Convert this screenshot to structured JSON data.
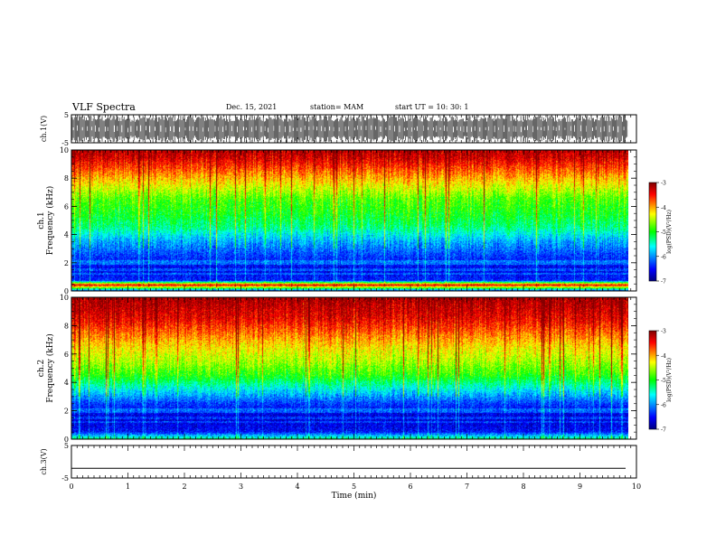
{
  "header": {
    "title": "VLF Spectra",
    "date": "Dec. 15, 2021",
    "station": "station= MAM",
    "start": "start UT =   10: 30: 1"
  },
  "chart_data": {
    "type": "heatmap",
    "x": {
      "label": "Time (min)",
      "range": [
        0,
        10
      ],
      "ticks": [
        0,
        1,
        2,
        3,
        4,
        5,
        6,
        7,
        8,
        9,
        10
      ],
      "tick_labels": [
        "0",
        "1",
        "2",
        "3",
        "4",
        "5",
        "6",
        "7",
        "8",
        "9",
        "10"
      ],
      "data_end": 9.85
    },
    "panels": [
      {
        "id": "ch1-waveform",
        "type": "line",
        "ylabel": "ch.1(V)",
        "ylim": [
          -5,
          5
        ],
        "yticks": [
          5,
          -5
        ],
        "ytick_labels": [
          "5",
          "-5"
        ],
        "description_values": {
          "amplitude_max": 5,
          "amplitude_min": -5,
          "signal": "dense impulsive bursts"
        }
      },
      {
        "id": "ch1-spectrogram",
        "type": "heatmap",
        "ylabel_line1": "ch.1",
        "ylabel_line2": "Frequency (kHz)",
        "ylim": [
          0,
          10
        ],
        "yticks": [
          0,
          2,
          4,
          6,
          8,
          10
        ],
        "ytick_labels": [
          "0",
          "2",
          "4",
          "6",
          "8",
          "10"
        ],
        "colorbar": {
          "label": "log(PSD)(V²/Hz)",
          "range": [
            -7,
            -3
          ],
          "ticks": [
            -3,
            -4,
            -5,
            -6,
            -7
          ],
          "tick_labels": [
            "-3",
            "-4",
            "-5",
            "-6",
            "-7"
          ]
        },
        "approx_profile_kHz_vs_logPSD": [
          [
            0.0,
            -6.2
          ],
          [
            0.4,
            -3.3
          ],
          [
            0.7,
            -6.4
          ],
          [
            1.5,
            -6.6
          ],
          [
            2.5,
            -6.3
          ],
          [
            3.5,
            -5.9
          ],
          [
            4.5,
            -5.3
          ],
          [
            5.5,
            -5.0
          ],
          [
            6.5,
            -4.8
          ],
          [
            7.5,
            -4.3
          ],
          [
            8.5,
            -3.8
          ],
          [
            9.5,
            -3.3
          ],
          [
            10.0,
            -3.2
          ]
        ]
      },
      {
        "id": "ch2-spectrogram",
        "type": "heatmap",
        "ylabel_line1": "ch.2",
        "ylabel_line2": "Frequency (kHz)",
        "ylim": [
          0,
          10
        ],
        "yticks": [
          0,
          2,
          4,
          6,
          8,
          10
        ],
        "ytick_labels": [
          "0",
          "2",
          "4",
          "6",
          "8",
          "10"
        ],
        "colorbar": {
          "label": "log(PSD)(V²/Hz)",
          "range": [
            -7,
            -3
          ],
          "ticks": [
            -3,
            -4,
            -5,
            -6,
            -7
          ],
          "tick_labels": [
            "-3",
            "-4",
            "-5",
            "-6",
            "-7"
          ]
        },
        "approx_profile_kHz_vs_logPSD": [
          [
            0.0,
            -5.3
          ],
          [
            0.5,
            -6.5
          ],
          [
            1.5,
            -6.7
          ],
          [
            2.5,
            -6.3
          ],
          [
            3.5,
            -5.6
          ],
          [
            4.5,
            -4.9
          ],
          [
            5.5,
            -4.5
          ],
          [
            6.5,
            -4.2
          ],
          [
            7.5,
            -3.8
          ],
          [
            8.5,
            -3.4
          ],
          [
            9.5,
            -3.2
          ],
          [
            10.0,
            -3.1
          ]
        ]
      },
      {
        "id": "ch3-waveform",
        "type": "line",
        "ylabel": "ch.3(V)",
        "ylim": [
          -5,
          5
        ],
        "yticks": [
          5,
          -5
        ],
        "ytick_labels": [
          "5",
          "-5"
        ],
        "description_values": {
          "constant_level": -2
        }
      }
    ],
    "grid": false,
    "colormap": [
      "#000080",
      "#0000ff",
      "#00ffff",
      "#00ff00",
      "#ffff00",
      "#ff0000",
      "#800000"
    ]
  }
}
